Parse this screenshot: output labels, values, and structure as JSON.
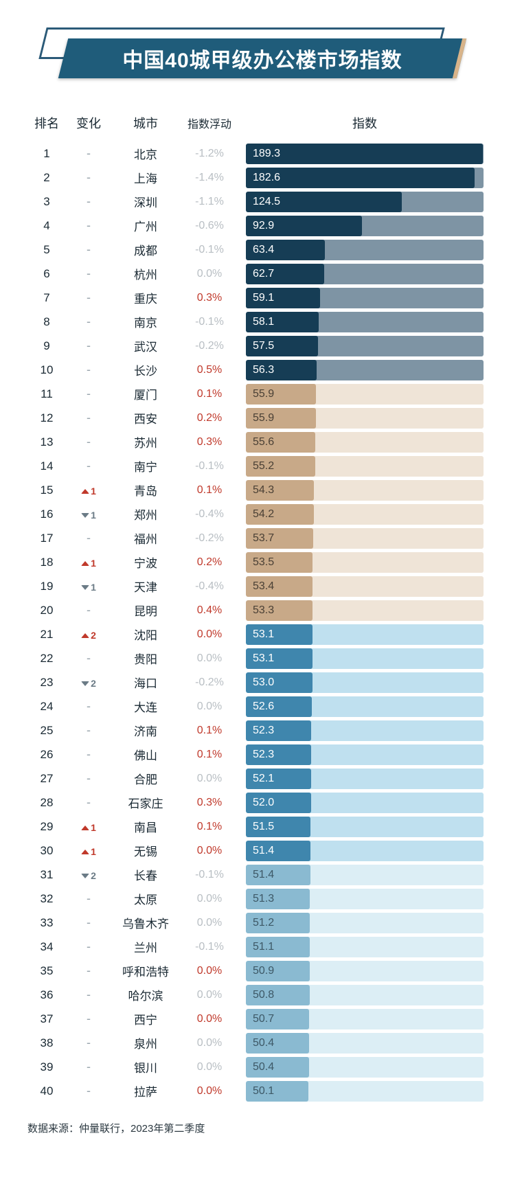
{
  "title": "中国40城甲级办公楼市场指数",
  "headers": {
    "rank": "排名",
    "change": "变化",
    "city": "城市",
    "float": "指数浮动",
    "index": "指数"
  },
  "source": "数据来源：仲量联行，2023年第二季度",
  "max_index": 190,
  "groups": [
    {
      "range": [
        1,
        10
      ],
      "inner": "#163d55",
      "outer": "#7e94a4",
      "label": "#ffffff"
    },
    {
      "range": [
        11,
        20
      ],
      "inner": "#c8a988",
      "outer": "#efe4d7",
      "label": "#4a4035"
    },
    {
      "range": [
        21,
        30
      ],
      "inner": "#3f86ad",
      "outer": "#bfe0ef",
      "label": "#ffffff"
    },
    {
      "range": [
        31,
        40
      ],
      "inner": "#8abad1",
      "outer": "#dceef5",
      "label": "#3d5866"
    }
  ],
  "rows": [
    {
      "rank": 1,
      "chg_dir": "none",
      "chg_n": null,
      "city": "北京",
      "float": "-1.2%",
      "float_sign": "neg",
      "index": 189.3
    },
    {
      "rank": 2,
      "chg_dir": "none",
      "chg_n": null,
      "city": "上海",
      "float": "-1.4%",
      "float_sign": "neg",
      "index": 182.6
    },
    {
      "rank": 3,
      "chg_dir": "none",
      "chg_n": null,
      "city": "深圳",
      "float": "-1.1%",
      "float_sign": "neg",
      "index": 124.5
    },
    {
      "rank": 4,
      "chg_dir": "none",
      "chg_n": null,
      "city": "广州",
      "float": "-0.6%",
      "float_sign": "neg",
      "index": 92.9
    },
    {
      "rank": 5,
      "chg_dir": "none",
      "chg_n": null,
      "city": "成都",
      "float": "-0.1%",
      "float_sign": "neg",
      "index": 63.4
    },
    {
      "rank": 6,
      "chg_dir": "none",
      "chg_n": null,
      "city": "杭州",
      "float": "0.0%",
      "float_sign": "zero",
      "index": 62.7
    },
    {
      "rank": 7,
      "chg_dir": "none",
      "chg_n": null,
      "city": "重庆",
      "float": "0.3%",
      "float_sign": "pos",
      "index": 59.1
    },
    {
      "rank": 8,
      "chg_dir": "none",
      "chg_n": null,
      "city": "南京",
      "float": "-0.1%",
      "float_sign": "neg",
      "index": 58.1
    },
    {
      "rank": 9,
      "chg_dir": "none",
      "chg_n": null,
      "city": "武汉",
      "float": "-0.2%",
      "float_sign": "neg",
      "index": 57.5
    },
    {
      "rank": 10,
      "chg_dir": "none",
      "chg_n": null,
      "city": "长沙",
      "float": "0.5%",
      "float_sign": "pos",
      "index": 56.3
    },
    {
      "rank": 11,
      "chg_dir": "none",
      "chg_n": null,
      "city": "厦门",
      "float": "0.1%",
      "float_sign": "pos",
      "index": 55.9
    },
    {
      "rank": 12,
      "chg_dir": "none",
      "chg_n": null,
      "city": "西安",
      "float": "0.2%",
      "float_sign": "pos",
      "index": 55.9
    },
    {
      "rank": 13,
      "chg_dir": "none",
      "chg_n": null,
      "city": "苏州",
      "float": "0.3%",
      "float_sign": "pos",
      "index": 55.6
    },
    {
      "rank": 14,
      "chg_dir": "none",
      "chg_n": null,
      "city": "南宁",
      "float": "-0.1%",
      "float_sign": "neg",
      "index": 55.2
    },
    {
      "rank": 15,
      "chg_dir": "up",
      "chg_n": 1,
      "city": "青岛",
      "float": "0.1%",
      "float_sign": "pos",
      "index": 54.3
    },
    {
      "rank": 16,
      "chg_dir": "down",
      "chg_n": 1,
      "city": "郑州",
      "float": "-0.4%",
      "float_sign": "neg",
      "index": 54.2
    },
    {
      "rank": 17,
      "chg_dir": "none",
      "chg_n": null,
      "city": "福州",
      "float": "-0.2%",
      "float_sign": "neg",
      "index": 53.7
    },
    {
      "rank": 18,
      "chg_dir": "up",
      "chg_n": 1,
      "city": "宁波",
      "float": "0.2%",
      "float_sign": "pos",
      "index": 53.5
    },
    {
      "rank": 19,
      "chg_dir": "down",
      "chg_n": 1,
      "city": "天津",
      "float": "-0.4%",
      "float_sign": "neg",
      "index": 53.4
    },
    {
      "rank": 20,
      "chg_dir": "none",
      "chg_n": null,
      "city": "昆明",
      "float": "0.4%",
      "float_sign": "pos",
      "index": 53.3
    },
    {
      "rank": 21,
      "chg_dir": "up",
      "chg_n": 2,
      "city": "沈阳",
      "float": "0.0%",
      "float_sign": "pos",
      "index": 53.1
    },
    {
      "rank": 22,
      "chg_dir": "none",
      "chg_n": null,
      "city": "贵阳",
      "float": "0.0%",
      "float_sign": "zero",
      "index": 53.1
    },
    {
      "rank": 23,
      "chg_dir": "down",
      "chg_n": 2,
      "city": "海口",
      "float": "-0.2%",
      "float_sign": "neg",
      "index": 53.0
    },
    {
      "rank": 24,
      "chg_dir": "none",
      "chg_n": null,
      "city": "大连",
      "float": "0.0%",
      "float_sign": "zero",
      "index": 52.6
    },
    {
      "rank": 25,
      "chg_dir": "none",
      "chg_n": null,
      "city": "济南",
      "float": "0.1%",
      "float_sign": "pos",
      "index": 52.3
    },
    {
      "rank": 26,
      "chg_dir": "none",
      "chg_n": null,
      "city": "佛山",
      "float": "0.1%",
      "float_sign": "pos",
      "index": 52.3
    },
    {
      "rank": 27,
      "chg_dir": "none",
      "chg_n": null,
      "city": "合肥",
      "float": "0.0%",
      "float_sign": "zero",
      "index": 52.1
    },
    {
      "rank": 28,
      "chg_dir": "none",
      "chg_n": null,
      "city": "石家庄",
      "float": "0.3%",
      "float_sign": "pos",
      "index": 52.0
    },
    {
      "rank": 29,
      "chg_dir": "up",
      "chg_n": 1,
      "city": "南昌",
      "float": "0.1%",
      "float_sign": "pos",
      "index": 51.5
    },
    {
      "rank": 30,
      "chg_dir": "up",
      "chg_n": 1,
      "city": "无锡",
      "float": "0.0%",
      "float_sign": "pos",
      "index": 51.4
    },
    {
      "rank": 31,
      "chg_dir": "down",
      "chg_n": 2,
      "city": "长春",
      "float": "-0.1%",
      "float_sign": "neg",
      "index": 51.4
    },
    {
      "rank": 32,
      "chg_dir": "none",
      "chg_n": null,
      "city": "太原",
      "float": "0.0%",
      "float_sign": "zero",
      "index": 51.3
    },
    {
      "rank": 33,
      "chg_dir": "none",
      "chg_n": null,
      "city": "乌鲁木齐",
      "float": "0.0%",
      "float_sign": "zero",
      "index": 51.2
    },
    {
      "rank": 34,
      "chg_dir": "none",
      "chg_n": null,
      "city": "兰州",
      "float": "-0.1%",
      "float_sign": "neg",
      "index": 51.1
    },
    {
      "rank": 35,
      "chg_dir": "none",
      "chg_n": null,
      "city": "呼和浩特",
      "float": "0.0%",
      "float_sign": "pos",
      "index": 50.9
    },
    {
      "rank": 36,
      "chg_dir": "none",
      "chg_n": null,
      "city": "哈尔滨",
      "float": "0.0%",
      "float_sign": "zero",
      "index": 50.8
    },
    {
      "rank": 37,
      "chg_dir": "none",
      "chg_n": null,
      "city": "西宁",
      "float": "0.0%",
      "float_sign": "pos",
      "index": 50.7
    },
    {
      "rank": 38,
      "chg_dir": "none",
      "chg_n": null,
      "city": "泉州",
      "float": "0.0%",
      "float_sign": "zero",
      "index": 50.4
    },
    {
      "rank": 39,
      "chg_dir": "none",
      "chg_n": null,
      "city": "银川",
      "float": "0.0%",
      "float_sign": "zero",
      "index": 50.4
    },
    {
      "rank": 40,
      "chg_dir": "none",
      "chg_n": null,
      "city": "拉萨",
      "float": "0.0%",
      "float_sign": "pos",
      "index": 50.1
    }
  ]
}
